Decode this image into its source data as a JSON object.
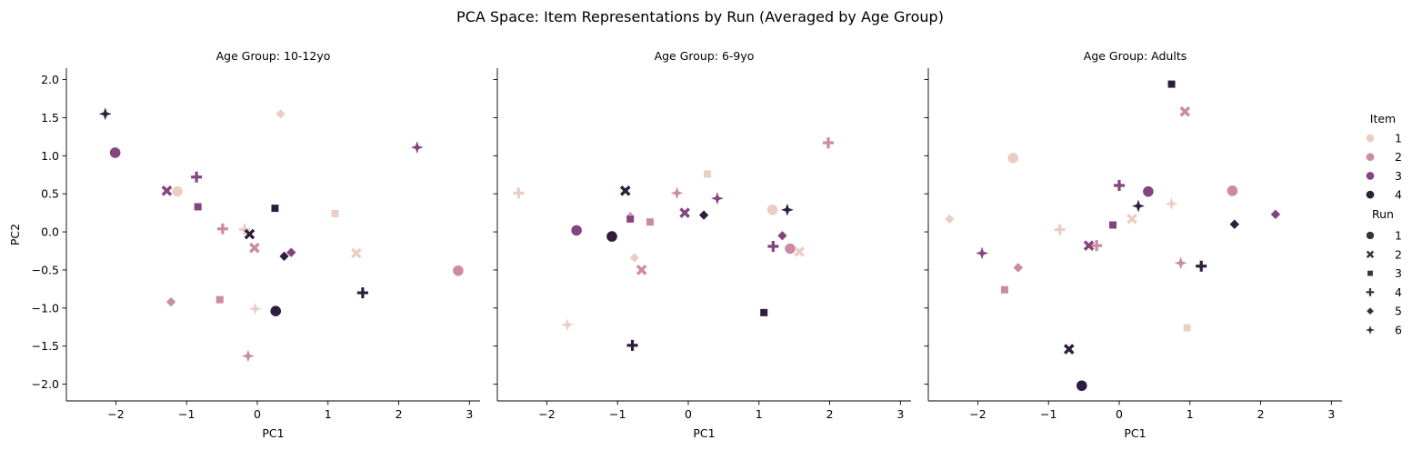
{
  "title": "PCA Space: Item Representations by Run (Averaged by Age Group)",
  "colors": {
    "1": "#ebcdc4",
    "2": "#cc8ba1",
    "3": "#84457f",
    "4": "#2e1e3c"
  },
  "marker_shapes": {
    "1": "circle",
    "2": "x",
    "3": "square",
    "4": "plus",
    "5": "diamond",
    "6": "star4"
  },
  "legend": {
    "item_title": "Item",
    "items": [
      "1",
      "2",
      "3",
      "4"
    ],
    "run_title": "Run",
    "runs": [
      "1",
      "2",
      "3",
      "4",
      "5",
      "6"
    ]
  },
  "chart_data": [
    {
      "type": "scatter",
      "title": "Age Group: 10-12yo",
      "xlabel": "PC1",
      "ylabel": "PC2",
      "xlim": [
        -2.7,
        3.15
      ],
      "ylim": [
        -2.22,
        2.15
      ],
      "xticks": [
        -2,
        -1,
        0,
        1,
        2,
        3
      ],
      "yticks": [
        -2.0,
        -1.5,
        -1.0,
        -0.5,
        0.0,
        0.5,
        1.0,
        1.5,
        2.0
      ],
      "points": [
        {
          "item": 1,
          "run": 1,
          "x": -1.13,
          "y": 0.53
        },
        {
          "item": 1,
          "run": 3,
          "x": 1.1,
          "y": 0.24
        },
        {
          "item": 1,
          "run": 2,
          "x": 1.4,
          "y": -0.28
        },
        {
          "item": 1,
          "run": 5,
          "x": 0.33,
          "y": 1.55
        },
        {
          "item": 1,
          "run": 6,
          "x": -0.03,
          "y": -1.01
        },
        {
          "item": 1,
          "run": 4,
          "x": -0.18,
          "y": 0.03
        },
        {
          "item": 2,
          "run": 1,
          "x": 2.84,
          "y": -0.51
        },
        {
          "item": 2,
          "run": 2,
          "x": -0.04,
          "y": -0.21
        },
        {
          "item": 2,
          "run": 3,
          "x": -0.53,
          "y": -0.89
        },
        {
          "item": 2,
          "run": 4,
          "x": -0.49,
          "y": 0.04
        },
        {
          "item": 2,
          "run": 5,
          "x": -1.22,
          "y": -0.92
        },
        {
          "item": 2,
          "run": 6,
          "x": -0.13,
          "y": -1.63
        },
        {
          "item": 3,
          "run": 1,
          "x": -2.01,
          "y": 1.04
        },
        {
          "item": 3,
          "run": 2,
          "x": -1.28,
          "y": 0.54
        },
        {
          "item": 3,
          "run": 3,
          "x": -0.84,
          "y": 0.33
        },
        {
          "item": 3,
          "run": 4,
          "x": -0.86,
          "y": 0.72
        },
        {
          "item": 3,
          "run": 5,
          "x": 0.48,
          "y": -0.27
        },
        {
          "item": 3,
          "run": 6,
          "x": 2.26,
          "y": 1.11
        },
        {
          "item": 4,
          "run": 1,
          "x": 0.26,
          "y": -1.04
        },
        {
          "item": 4,
          "run": 2,
          "x": -0.11,
          "y": -0.03
        },
        {
          "item": 4,
          "run": 3,
          "x": 0.25,
          "y": 0.31
        },
        {
          "item": 4,
          "run": 4,
          "x": 1.49,
          "y": -0.8
        },
        {
          "item": 4,
          "run": 5,
          "x": 0.38,
          "y": -0.32
        },
        {
          "item": 4,
          "run": 6,
          "x": -2.15,
          "y": 1.55
        }
      ]
    },
    {
      "type": "scatter",
      "title": "Age Group: 6-9yo",
      "xlabel": "PC1",
      "ylabel": "",
      "xlim": [
        -2.7,
        3.15
      ],
      "ylim": [
        -2.22,
        2.15
      ],
      "xticks": [
        -2,
        -1,
        0,
        1,
        2,
        3
      ],
      "yticks": [
        -2.0,
        -1.5,
        -1.0,
        -0.5,
        0.0,
        0.5,
        1.0,
        1.5,
        2.0
      ],
      "points": [
        {
          "item": 1,
          "run": 1,
          "x": 1.19,
          "y": 0.29
        },
        {
          "item": 1,
          "run": 2,
          "x": 1.57,
          "y": -0.26
        },
        {
          "item": 1,
          "run": 3,
          "x": 0.27,
          "y": 0.76
        },
        {
          "item": 1,
          "run": 4,
          "x": -2.4,
          "y": 0.51
        },
        {
          "item": 1,
          "run": 5,
          "x": -0.76,
          "y": -0.34
        },
        {
          "item": 1,
          "run": 6,
          "x": -1.71,
          "y": -1.22
        },
        {
          "item": 2,
          "run": 1,
          "x": 1.44,
          "y": -0.22
        },
        {
          "item": 2,
          "run": 2,
          "x": -0.66,
          "y": -0.5
        },
        {
          "item": 2,
          "run": 3,
          "x": -0.54,
          "y": 0.13
        },
        {
          "item": 2,
          "run": 4,
          "x": 1.98,
          "y": 1.17
        },
        {
          "item": 2,
          "run": 5,
          "x": -0.82,
          "y": 0.2
        },
        {
          "item": 2,
          "run": 6,
          "x": -0.16,
          "y": 0.51
        },
        {
          "item": 3,
          "run": 1,
          "x": -1.58,
          "y": 0.02
        },
        {
          "item": 3,
          "run": 2,
          "x": -0.05,
          "y": 0.25
        },
        {
          "item": 3,
          "run": 3,
          "x": -0.82,
          "y": 0.17
        },
        {
          "item": 3,
          "run": 4,
          "x": 1.2,
          "y": -0.19
        },
        {
          "item": 3,
          "run": 5,
          "x": 1.33,
          "y": -0.05
        },
        {
          "item": 3,
          "run": 6,
          "x": 0.41,
          "y": 0.44
        },
        {
          "item": 4,
          "run": 1,
          "x": -1.08,
          "y": -0.06
        },
        {
          "item": 4,
          "run": 2,
          "x": -0.89,
          "y": 0.54
        },
        {
          "item": 4,
          "run": 3,
          "x": 1.07,
          "y": -1.06
        },
        {
          "item": 4,
          "run": 4,
          "x": -0.79,
          "y": -1.49
        },
        {
          "item": 4,
          "run": 5,
          "x": 0.22,
          "y": 0.22
        },
        {
          "item": 4,
          "run": 6,
          "x": 1.4,
          "y": 0.29
        }
      ]
    },
    {
      "type": "scatter",
      "title": "Age Group: Adults",
      "xlabel": "PC1",
      "ylabel": "",
      "xlim": [
        -2.7,
        3.15
      ],
      "ylim": [
        -2.22,
        2.15
      ],
      "xticks": [
        -2,
        -1,
        0,
        1,
        2,
        3
      ],
      "yticks": [
        -2.0,
        -1.5,
        -1.0,
        -0.5,
        0.0,
        0.5,
        1.0,
        1.5,
        2.0
      ],
      "points": [
        {
          "item": 1,
          "run": 1,
          "x": -1.5,
          "y": 0.97
        },
        {
          "item": 1,
          "run": 2,
          "x": 0.18,
          "y": 0.17
        },
        {
          "item": 1,
          "run": 3,
          "x": 0.96,
          "y": -1.26
        },
        {
          "item": 1,
          "run": 4,
          "x": -0.84,
          "y": 0.03
        },
        {
          "item": 1,
          "run": 5,
          "x": -2.4,
          "y": 0.17
        },
        {
          "item": 1,
          "run": 6,
          "x": 0.74,
          "y": 0.37
        },
        {
          "item": 2,
          "run": 1,
          "x": 1.6,
          "y": 0.54
        },
        {
          "item": 2,
          "run": 2,
          "x": 0.93,
          "y": 1.58
        },
        {
          "item": 2,
          "run": 3,
          "x": -1.62,
          "y": -0.76
        },
        {
          "item": 2,
          "run": 4,
          "x": -0.32,
          "y": -0.18
        },
        {
          "item": 2,
          "run": 5,
          "x": -1.43,
          "y": -0.47
        },
        {
          "item": 2,
          "run": 6,
          "x": 0.87,
          "y": -0.41
        },
        {
          "item": 3,
          "run": 1,
          "x": 0.41,
          "y": 0.53
        },
        {
          "item": 3,
          "run": 2,
          "x": -0.43,
          "y": -0.18
        },
        {
          "item": 3,
          "run": 3,
          "x": -0.09,
          "y": 0.09
        },
        {
          "item": 3,
          "run": 4,
          "x": 0.0,
          "y": 0.61
        },
        {
          "item": 3,
          "run": 5,
          "x": 2.21,
          "y": 0.23
        },
        {
          "item": 3,
          "run": 6,
          "x": -1.94,
          "y": -0.28
        },
        {
          "item": 4,
          "run": 1,
          "x": -0.53,
          "y": -2.02
        },
        {
          "item": 4,
          "run": 2,
          "x": -0.71,
          "y": -1.54
        },
        {
          "item": 4,
          "run": 3,
          "x": 0.74,
          "y": 1.94
        },
        {
          "item": 4,
          "run": 4,
          "x": 1.16,
          "y": -0.45
        },
        {
          "item": 4,
          "run": 5,
          "x": 1.63,
          "y": 0.1
        },
        {
          "item": 4,
          "run": 6,
          "x": 0.27,
          "y": 0.34
        }
      ]
    }
  ]
}
